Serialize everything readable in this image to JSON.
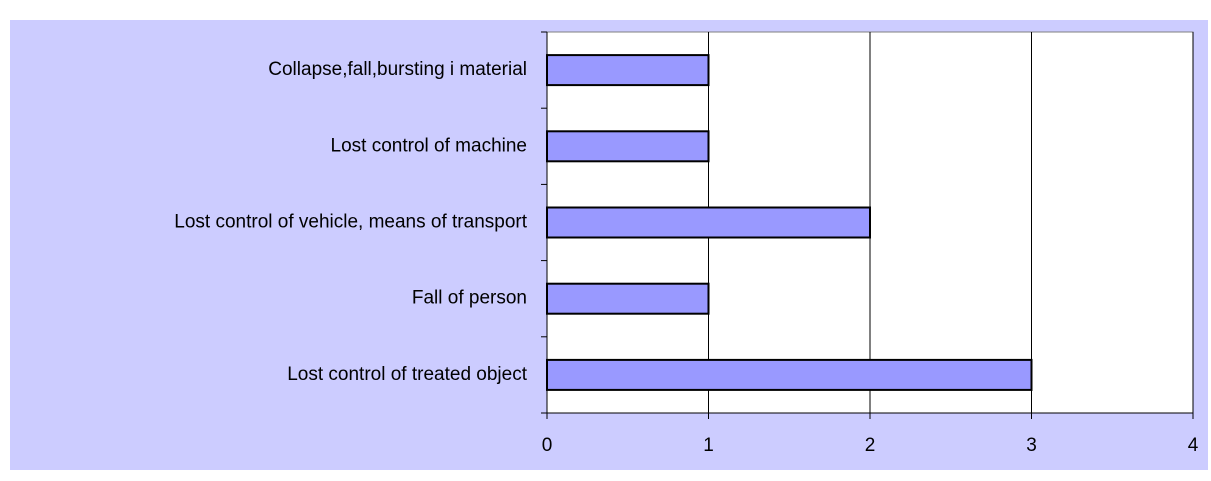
{
  "chart_data": {
    "type": "bar",
    "orientation": "horizontal",
    "categories": [
      "Collapse,fall,bursting i material",
      "Lost control of machine",
      "Lost control of vehicle, means of transport",
      "Fall of person",
      "Lost control of treated object"
    ],
    "values": [
      1,
      1,
      2,
      1,
      3
    ],
    "color": "#9999ff",
    "xlim": [
      0,
      4
    ],
    "xticks": [
      0,
      1,
      2,
      3,
      4
    ],
    "grid": true
  }
}
